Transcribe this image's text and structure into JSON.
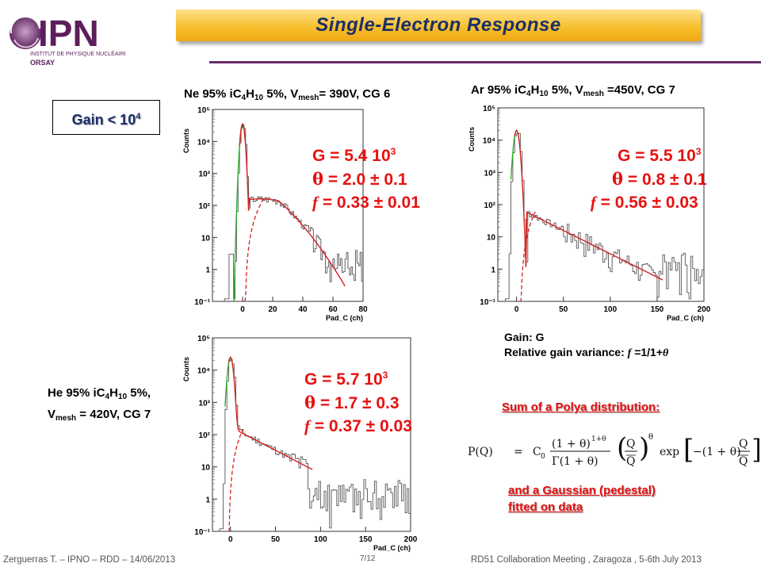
{
  "header": {
    "logo": {
      "name": "IPN",
      "subtitle": "INSTITUT DE PHYSIQUE NUCLÉAIRE",
      "place": "ORSAY"
    },
    "title": "Single-Electron Response"
  },
  "gain_box": {
    "text": "Gain < 10",
    "exp": "4"
  },
  "plots": [
    {
      "gas": "Ne 95% iC",
      "sub1": "4",
      "mid": "H",
      "sub2": "10",
      "tail": " 5%, V",
      "vsub": "mesh",
      "vtext": "= 390V, CG 6",
      "G": "G = 5.4 10",
      "G_exp": "3",
      "theta": " = 2.0 ± 0.1",
      "f": " = 0.33 ± 0.01",
      "ylabel": "Counts",
      "xlabel": "Pad_C (ch)",
      "xticks": [
        "0",
        "20",
        "40",
        "60",
        "80"
      ],
      "yticks": [
        "10⁵",
        "10⁴",
        "10³",
        "10²",
        "10",
        "1",
        "10⁻¹"
      ]
    },
    {
      "gas": "Ar 95% iC",
      "sub1": "4",
      "mid": "H",
      "sub2": "10",
      "tail": " 5%, V",
      "vsub": "mesh",
      "vtext": " =450V, CG 7",
      "G": "G = 5.5 10",
      "G_exp": "3",
      "theta": " = 0.8 ± 0.1",
      "f": " = 0.56 ± 0.03",
      "ylabel": "Counts",
      "xlabel": "Pad_C (ch)",
      "xticks": [
        "0",
        "50",
        "100",
        "150",
        "200"
      ],
      "yticks": [
        "10⁵",
        "10⁴",
        "10³",
        "10²",
        "10",
        "1",
        "10⁻¹"
      ]
    },
    {
      "gas": "He 95% iC",
      "sub1": "4",
      "mid": "H",
      "sub2": "10",
      "tail": " 5%,",
      "vprefix": "V",
      "vsub": "mesh",
      "vtext": " = 420V, CG 7",
      "G": "G = 5.7 10",
      "G_exp": "3",
      "theta": " = 1.7 ± 0.3",
      "f": " = 0.37 ± 0.03",
      "ylabel": "Counts",
      "xlabel": "Pad_C (ch)",
      "xticks": [
        "0",
        "50",
        "100",
        "150",
        "200"
      ],
      "yticks": [
        "10⁵",
        "10⁴",
        "10³",
        "10²",
        "10",
        "1",
        "10⁻¹"
      ]
    }
  ],
  "legend_text": {
    "gain": "Gain: G",
    "variance_prefix": "Relative gain variance: ",
    "variance_f": "f",
    "variance_rest": " =1/1+"
  },
  "fit_text": {
    "sum": "Sum of a Polya distribution:",
    "gauss_1": "and a Gaussian (pedestal)",
    "gauss_2": "fitted on data"
  },
  "formula": {
    "lhs": "P(Q)",
    "eq": "=",
    "c0": "C",
    "c0_sub": "0",
    "num": "(1 + θ)",
    "num_exp": "1+θ",
    "den": "Γ(1 + θ)",
    "q": "Q",
    "qbar": "Q",
    "theta_exp": "θ",
    "exp": "exp",
    "minus": "−(1 + θ)"
  },
  "footer": {
    "left": "Zerguerras  T. – IPNO – RDD – 14/06/2013",
    "page": "7/12",
    "right": "RD51 Collaboration Meeting , Zaragoza , 5-6th July 2013"
  },
  "colors": {
    "title_banner": "#f7c02e",
    "title_text": "#1a2f68",
    "accent_rule": "#6a2b6a",
    "fit_text": "#e81010",
    "polya_fit": "#d42020",
    "gauss_fit": "#22b022"
  }
}
